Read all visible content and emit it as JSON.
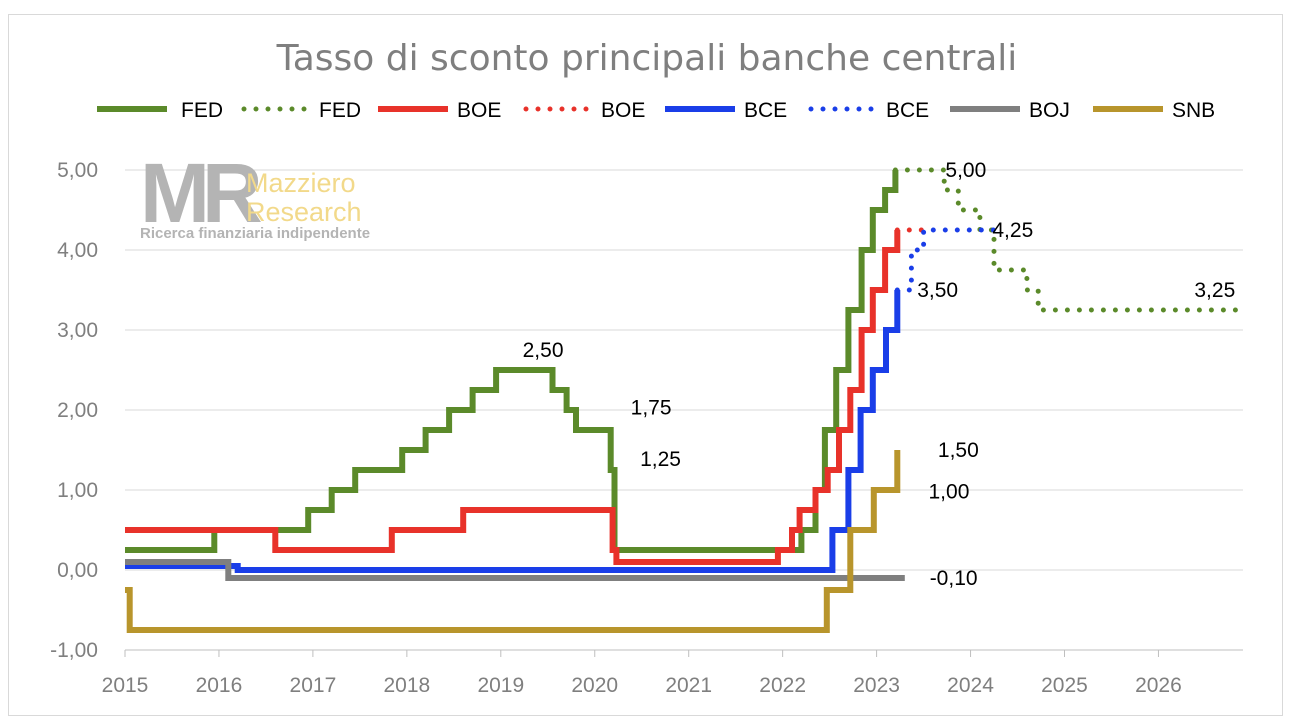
{
  "chart_data": {
    "type": "line",
    "title": "Tasso di sconto principali banche centrali",
    "xlabel": "",
    "ylabel": "",
    "xlim": [
      2015,
      2026.9
    ],
    "ylim": [
      -1,
      5
    ],
    "x_ticks": [
      "2015",
      "2016",
      "2017",
      "2018",
      "2019",
      "2020",
      "2021",
      "2022",
      "2023",
      "2024",
      "2025",
      "2026"
    ],
    "y_ticks": [
      "-1,00",
      "0,00",
      "1,00",
      "2,00",
      "3,00",
      "4,00",
      "5,00"
    ],
    "grid": "horizontal",
    "legend_position": "top",
    "watermark": {
      "brand": "MR",
      "line1": "Mazziero",
      "line2": "Research",
      "tagline": "Ricerca finanziaria indipendente"
    },
    "series": [
      {
        "name": "FED",
        "style": "solid",
        "color": "#5b8a2a",
        "points": [
          [
            2015,
            0.25
          ],
          [
            2015.95,
            0.25
          ],
          [
            2015.95,
            0.5
          ],
          [
            2016.95,
            0.5
          ],
          [
            2016.95,
            0.75
          ],
          [
            2017.2,
            0.75
          ],
          [
            2017.2,
            1.0
          ],
          [
            2017.45,
            1.0
          ],
          [
            2017.45,
            1.25
          ],
          [
            2017.95,
            1.25
          ],
          [
            2017.95,
            1.5
          ],
          [
            2018.2,
            1.5
          ],
          [
            2018.2,
            1.75
          ],
          [
            2018.45,
            1.75
          ],
          [
            2018.45,
            2.0
          ],
          [
            2018.7,
            2.0
          ],
          [
            2018.7,
            2.25
          ],
          [
            2018.95,
            2.25
          ],
          [
            2018.95,
            2.5
          ],
          [
            2019.55,
            2.5
          ],
          [
            2019.55,
            2.25
          ],
          [
            2019.7,
            2.25
          ],
          [
            2019.7,
            2.0
          ],
          [
            2019.8,
            2.0
          ],
          [
            2019.8,
            1.75
          ],
          [
            2020.17,
            1.75
          ],
          [
            2020.17,
            1.25
          ],
          [
            2020.21,
            1.25
          ],
          [
            2020.21,
            0.25
          ],
          [
            2022.2,
            0.25
          ],
          [
            2022.2,
            0.5
          ],
          [
            2022.35,
            0.5
          ],
          [
            2022.35,
            1.0
          ],
          [
            2022.45,
            1.0
          ],
          [
            2022.45,
            1.75
          ],
          [
            2022.57,
            1.75
          ],
          [
            2022.57,
            2.5
          ],
          [
            2022.7,
            2.5
          ],
          [
            2022.7,
            3.25
          ],
          [
            2022.84,
            3.25
          ],
          [
            2022.84,
            4.0
          ],
          [
            2022.96,
            4.0
          ],
          [
            2022.96,
            4.5
          ],
          [
            2023.09,
            4.5
          ],
          [
            2023.09,
            4.75
          ],
          [
            2023.2,
            4.75
          ],
          [
            2023.2,
            5.0
          ]
        ]
      },
      {
        "name": "FED",
        "style": "dotted",
        "color": "#5b8a2a",
        "points": [
          [
            2023.2,
            5.0
          ],
          [
            2023.72,
            5.0
          ],
          [
            2023.72,
            4.75
          ],
          [
            2023.87,
            4.75
          ],
          [
            2023.87,
            4.5
          ],
          [
            2024.1,
            4.5
          ],
          [
            2024.1,
            4.25
          ],
          [
            2024.25,
            4.25
          ],
          [
            2024.25,
            3.75
          ],
          [
            2024.6,
            3.75
          ],
          [
            2024.6,
            3.5
          ],
          [
            2024.72,
            3.5
          ],
          [
            2024.72,
            3.25
          ],
          [
            2026.85,
            3.25
          ]
        ]
      },
      {
        "name": "BOE",
        "style": "solid",
        "color": "#e8322a",
        "points": [
          [
            2015,
            0.5
          ],
          [
            2016.6,
            0.5
          ],
          [
            2016.6,
            0.25
          ],
          [
            2017.84,
            0.25
          ],
          [
            2017.84,
            0.5
          ],
          [
            2018.6,
            0.5
          ],
          [
            2018.6,
            0.75
          ],
          [
            2020.19,
            0.75
          ],
          [
            2020.19,
            0.25
          ],
          [
            2020.23,
            0.25
          ],
          [
            2020.23,
            0.1
          ],
          [
            2021.95,
            0.1
          ],
          [
            2021.95,
            0.25
          ],
          [
            2022.1,
            0.25
          ],
          [
            2022.1,
            0.5
          ],
          [
            2022.18,
            0.5
          ],
          [
            2022.18,
            0.75
          ],
          [
            2022.35,
            0.75
          ],
          [
            2022.35,
            1.0
          ],
          [
            2022.48,
            1.0
          ],
          [
            2022.48,
            1.25
          ],
          [
            2022.6,
            1.25
          ],
          [
            2022.6,
            1.75
          ],
          [
            2022.72,
            1.75
          ],
          [
            2022.72,
            2.25
          ],
          [
            2022.84,
            2.25
          ],
          [
            2022.84,
            3.0
          ],
          [
            2022.96,
            3.0
          ],
          [
            2022.96,
            3.5
          ],
          [
            2023.09,
            3.5
          ],
          [
            2023.09,
            4.0
          ],
          [
            2023.22,
            4.0
          ],
          [
            2023.22,
            4.25
          ]
        ]
      },
      {
        "name": "BOE",
        "style": "dotted",
        "color": "#e8322a",
        "points": [
          [
            2023.22,
            4.25
          ],
          [
            2023.52,
            4.25
          ]
        ]
      },
      {
        "name": "BCE",
        "style": "solid",
        "color": "#1a3ee8",
        "points": [
          [
            2015,
            0.05
          ],
          [
            2016.2,
            0.05
          ],
          [
            2016.2,
            0.0
          ],
          [
            2022.53,
            0.0
          ],
          [
            2022.53,
            0.5
          ],
          [
            2022.7,
            0.5
          ],
          [
            2022.7,
            1.25
          ],
          [
            2022.83,
            1.25
          ],
          [
            2022.83,
            2.0
          ],
          [
            2022.96,
            2.0
          ],
          [
            2022.96,
            2.5
          ],
          [
            2023.1,
            2.5
          ],
          [
            2023.1,
            3.0
          ],
          [
            2023.22,
            3.0
          ],
          [
            2023.22,
            3.5
          ]
        ]
      },
      {
        "name": "BCE",
        "style": "dotted",
        "color": "#1a3ee8",
        "points": [
          [
            2023.22,
            3.5
          ],
          [
            2023.37,
            3.5
          ],
          [
            2023.37,
            4.0
          ],
          [
            2023.5,
            4.0
          ],
          [
            2023.5,
            4.25
          ],
          [
            2024.25,
            4.25
          ]
        ]
      },
      {
        "name": "BOJ",
        "style": "solid",
        "color": "#7f7f7f",
        "points": [
          [
            2015,
            0.1
          ],
          [
            2016.1,
            0.1
          ],
          [
            2016.1,
            -0.1
          ],
          [
            2023.3,
            -0.1
          ]
        ]
      },
      {
        "name": "SNB",
        "style": "solid",
        "color": "#b8952c",
        "points": [
          [
            2015,
            -0.25
          ],
          [
            2015.05,
            -0.25
          ],
          [
            2015.05,
            -0.75
          ],
          [
            2022.47,
            -0.75
          ],
          [
            2022.47,
            -0.25
          ],
          [
            2022.72,
            -0.25
          ],
          [
            2022.72,
            0.5
          ],
          [
            2022.97,
            0.5
          ],
          [
            2022.97,
            1.0
          ],
          [
            2023.22,
            1.0
          ],
          [
            2023.22,
            1.5
          ]
        ]
      }
    ],
    "annotations": [
      {
        "text": "5,00",
        "x": 2023.95,
        "y": 5.0
      },
      {
        "text": "4,25",
        "x": 2024.45,
        "y": 4.25
      },
      {
        "text": "3,50",
        "x": 2023.65,
        "y": 3.5
      },
      {
        "text": "3,25",
        "x": 2026.6,
        "y": 3.5
      },
      {
        "text": "2,50",
        "x": 2019.45,
        "y": 2.75
      },
      {
        "text": "1,75",
        "x": 2020.6,
        "y": 2.03
      },
      {
        "text": "1,25",
        "x": 2020.7,
        "y": 1.39
      },
      {
        "text": "1,50",
        "x": 2023.87,
        "y": 1.5
      },
      {
        "text": "1,00",
        "x": 2023.77,
        "y": 0.98
      },
      {
        "text": "-0,10",
        "x": 2023.82,
        "y": -0.1
      }
    ]
  }
}
